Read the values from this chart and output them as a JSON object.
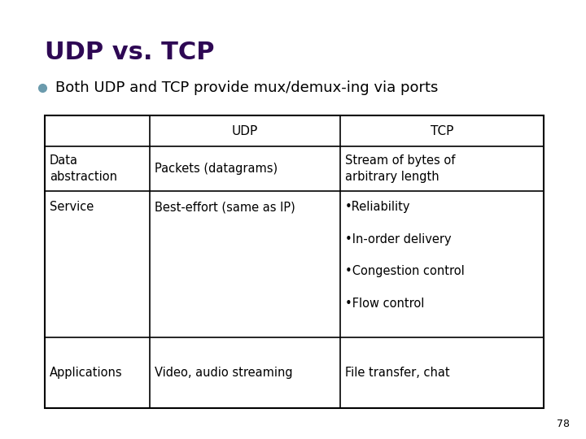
{
  "title": "UDP vs. TCP",
  "title_color": "#2E0854",
  "title_fontsize": 22,
  "bullet_text": "Both UDP and TCP provide mux/demux-ing via ports",
  "bullet_color": "#6B9BAD",
  "bullet_text_color": "#000000",
  "bullet_fontsize": 13,
  "col_headers": [
    "",
    "UDP",
    "TCP"
  ],
  "rows": [
    [
      "Data\nabstraction",
      "Packets (datagrams)",
      "Stream of bytes of\narbitrary length"
    ],
    [
      "Service",
      "Best-effort (same as IP)",
      "•Reliability\n\n•In-order delivery\n\n•Congestion control\n\n•Flow control"
    ],
    [
      "Applications",
      "Video, audio streaming",
      "File transfer, chat"
    ]
  ],
  "header_fontsize": 11,
  "cell_fontsize": 10.5,
  "page_number": "78",
  "background_color": "#FFFFFF",
  "table_border_color": "#000000",
  "text_color": "#000000"
}
